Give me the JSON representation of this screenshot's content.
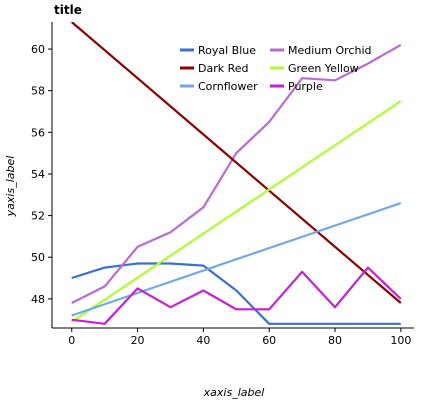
{
  "chart_data": {
    "type": "line",
    "title": "title",
    "xlabel": "xaxis_label",
    "ylabel": "yaxis_label",
    "xlim": [
      -6,
      104
    ],
    "ylim": [
      46.6,
      61.3
    ],
    "x_ticks": [
      "0",
      "20",
      "40",
      "60",
      "80",
      "100"
    ],
    "y_ticks": [
      "48",
      "50",
      "52",
      "54",
      "56",
      "58",
      "60"
    ],
    "grid": false,
    "legend_position": "top-center",
    "series": [
      {
        "name": "Royal Blue",
        "color": "#3a6fd0",
        "x": [
          0,
          10,
          20,
          30,
          40,
          50,
          60,
          70,
          80,
          90,
          100
        ],
        "y": [
          49.0,
          49.5,
          49.7,
          49.7,
          49.6,
          48.4,
          46.8,
          46.8,
          46.8,
          46.8,
          46.8
        ]
      },
      {
        "name": "Medium Orchid",
        "color": "#b86ad8",
        "x": [
          0,
          10,
          20,
          30,
          40,
          50,
          60,
          70,
          80,
          90,
          100
        ],
        "y": [
          47.8,
          48.6,
          50.5,
          51.2,
          52.4,
          55.0,
          56.5,
          58.6,
          58.5,
          59.3,
          60.2
        ]
      },
      {
        "name": "Dark Red",
        "color": "#8b0000",
        "x": [
          0,
          100
        ],
        "y": [
          61.3,
          47.8
        ]
      },
      {
        "name": "Green Yellow",
        "color": "#adff2f",
        "x": [
          0,
          100
        ],
        "y": [
          46.9,
          57.5
        ]
      },
      {
        "name": "Cornflower",
        "color": "#6fa8e8",
        "x": [
          0,
          100
        ],
        "y": [
          47.2,
          52.6
        ]
      },
      {
        "name": "Purple",
        "color": "#c61fd6",
        "x": [
          0,
          10,
          20,
          30,
          40,
          50,
          60,
          70,
          80,
          90,
          100
        ],
        "y": [
          47.0,
          46.8,
          48.5,
          47.6,
          48.4,
          47.5,
          47.5,
          49.3,
          47.6,
          49.5,
          48.0
        ]
      }
    ]
  }
}
